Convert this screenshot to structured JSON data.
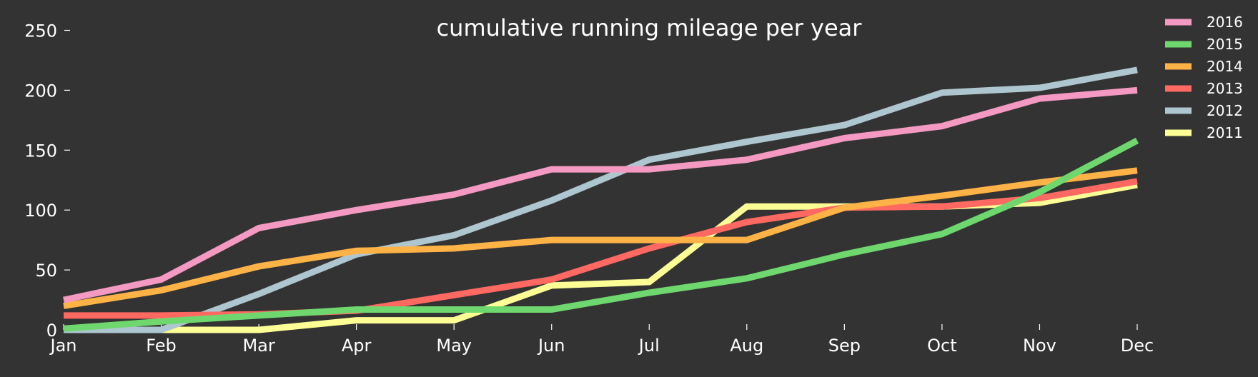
{
  "chart_data": {
    "type": "line",
    "title": "cumulative running mileage per year",
    "xlabel": "",
    "ylabel": "",
    "categories": [
      "Jan",
      "Feb",
      "Mar",
      "Apr",
      "May",
      "Jun",
      "Jul",
      "Aug",
      "Sep",
      "Oct",
      "Nov",
      "Dec"
    ],
    "yticks": [
      "0",
      "50",
      "100",
      "150",
      "200",
      "250"
    ],
    "ylim": [
      0,
      260
    ],
    "grid": false,
    "legend": "top-right",
    "series": [
      {
        "name": "2016",
        "color": "#f49ac2",
        "values": [
          25,
          42,
          85,
          100,
          113,
          134,
          134,
          142,
          160,
          170,
          193,
          200
        ]
      },
      {
        "name": "2015",
        "color": "#6ed86e",
        "values": [
          1,
          7,
          12,
          17,
          17,
          17,
          31,
          43,
          63,
          80,
          115,
          158
        ]
      },
      {
        "name": "2014",
        "color": "#ffb347",
        "values": [
          20,
          33,
          53,
          66,
          68,
          75,
          75,
          75,
          102,
          112,
          123,
          133
        ]
      },
      {
        "name": "2013",
        "color": "#ff6961",
        "values": [
          12,
          12,
          13,
          16,
          29,
          42,
          68,
          90,
          102,
          103,
          110,
          124
        ]
      },
      {
        "name": "2012",
        "color": "#aec6cf",
        "values": [
          0,
          0,
          30,
          63,
          79,
          108,
          142,
          157,
          171,
          198,
          202,
          217
        ]
      },
      {
        "name": "2011",
        "color": "#fdfd96",
        "values": [
          0,
          0,
          0,
          8,
          8,
          37,
          40,
          103,
          103,
          103,
          106,
          121
        ]
      }
    ]
  }
}
